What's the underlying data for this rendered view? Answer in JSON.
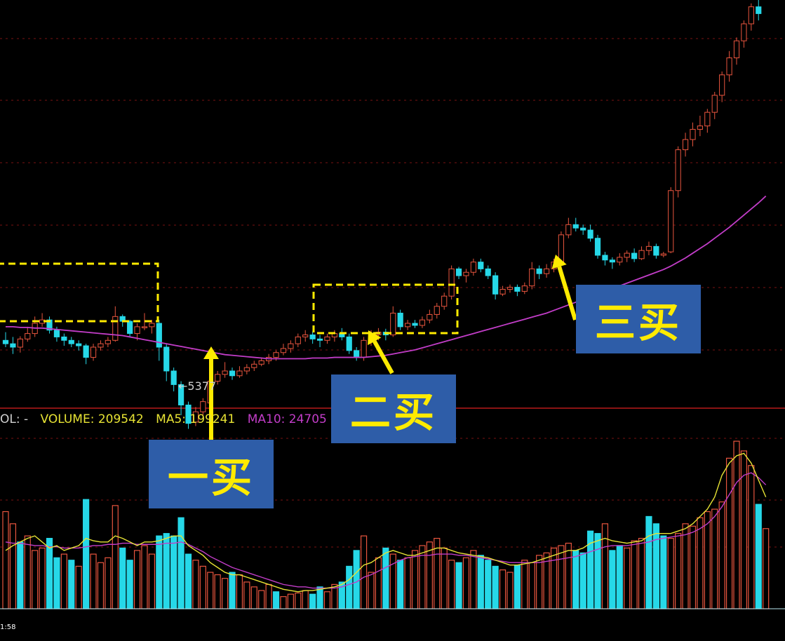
{
  "chart_data": {
    "type": "candlestick",
    "price": {
      "candles": [
        [
          9.8,
          9.75,
          9.92,
          9.7
        ],
        [
          9.75,
          9.7,
          9.85,
          9.6
        ],
        [
          9.7,
          9.82,
          9.86,
          9.62
        ],
        [
          9.82,
          9.9,
          10.0,
          9.78
        ],
        [
          9.9,
          10.05,
          10.15,
          9.85
        ],
        [
          10.05,
          10.1,
          10.2,
          10.0
        ],
        [
          10.1,
          9.95,
          10.15,
          9.9
        ],
        [
          9.95,
          9.85,
          10.0,
          9.78
        ],
        [
          9.85,
          9.8,
          9.9,
          9.72
        ],
        [
          9.8,
          9.75,
          9.85,
          9.7
        ],
        [
          9.75,
          9.72,
          9.8,
          9.65
        ],
        [
          9.72,
          9.55,
          9.75,
          9.45
        ],
        [
          9.55,
          9.7,
          9.75,
          9.5
        ],
        [
          9.7,
          9.75,
          9.8,
          9.65
        ],
        [
          9.75,
          9.8,
          9.85,
          9.7
        ],
        [
          9.8,
          10.15,
          10.3,
          9.78
        ],
        [
          10.15,
          10.08,
          10.18,
          10.0
        ],
        [
          10.08,
          9.9,
          10.1,
          9.85
        ],
        [
          9.9,
          10.0,
          10.05,
          9.8
        ],
        [
          10.0,
          10.0,
          10.2,
          9.95
        ],
        [
          10.0,
          10.05,
          10.1,
          9.9
        ],
        [
          10.05,
          9.7,
          10.1,
          9.5
        ],
        [
          9.7,
          9.35,
          9.75,
          9.2
        ],
        [
          9.35,
          9.15,
          9.4,
          9.05
        ],
        [
          9.15,
          8.85,
          9.2,
          8.7
        ],
        [
          8.85,
          8.58,
          8.9,
          8.5
        ],
        [
          8.6,
          8.75,
          8.82,
          8.54
        ],
        [
          8.75,
          8.9,
          8.95,
          8.7
        ],
        [
          8.88,
          9.2,
          9.25,
          8.85
        ],
        [
          9.2,
          9.3,
          9.35,
          9.15
        ],
        [
          9.3,
          9.35,
          9.48,
          9.25
        ],
        [
          9.35,
          9.28,
          9.4,
          9.22
        ],
        [
          9.28,
          9.35,
          9.42,
          9.25
        ],
        [
          9.35,
          9.4,
          9.45,
          9.3
        ],
        [
          9.4,
          9.45,
          9.5,
          9.35
        ],
        [
          9.45,
          9.5,
          9.55,
          9.42
        ],
        [
          9.5,
          9.55,
          9.6,
          9.45
        ],
        [
          9.55,
          9.62,
          9.65,
          9.5
        ],
        [
          9.62,
          9.68,
          9.75,
          9.58
        ],
        [
          9.68,
          9.75,
          9.8,
          9.62
        ],
        [
          9.75,
          9.85,
          9.9,
          9.7
        ],
        [
          9.85,
          9.88,
          9.95,
          9.78
        ],
        [
          9.88,
          9.82,
          9.93,
          9.75
        ],
        [
          9.82,
          9.8,
          9.88,
          9.7
        ],
        [
          9.8,
          9.85,
          9.9,
          9.75
        ],
        [
          9.85,
          9.9,
          9.95,
          9.78
        ],
        [
          9.9,
          9.85,
          9.98,
          9.8
        ],
        [
          9.85,
          9.65,
          9.9,
          9.6
        ],
        [
          9.65,
          9.55,
          9.7,
          9.5
        ],
        [
          9.55,
          9.8,
          9.85,
          9.5
        ],
        [
          9.8,
          9.88,
          9.95,
          9.72
        ],
        [
          9.88,
          9.92,
          9.98,
          9.8
        ],
        [
          9.92,
          9.88,
          9.97,
          9.8
        ],
        [
          9.88,
          10.2,
          10.3,
          9.85
        ],
        [
          10.2,
          10.0,
          10.25,
          9.95
        ],
        [
          10.0,
          10.05,
          10.1,
          9.95
        ],
        [
          10.05,
          10.02,
          10.1,
          9.98
        ],
        [
          10.02,
          10.1,
          10.15,
          9.98
        ],
        [
          10.1,
          10.18,
          10.25,
          10.05
        ],
        [
          10.18,
          10.3,
          10.35,
          10.12
        ],
        [
          10.3,
          10.45,
          10.5,
          10.25
        ],
        [
          10.45,
          10.85,
          10.9,
          10.4
        ],
        [
          10.85,
          10.75,
          10.88,
          10.7
        ],
        [
          10.75,
          10.8,
          10.85,
          10.65
        ],
        [
          10.8,
          10.95,
          11.0,
          10.75
        ],
        [
          10.95,
          10.85,
          11.0,
          10.8
        ],
        [
          10.85,
          10.75,
          10.9,
          10.7
        ],
        [
          10.75,
          10.48,
          10.8,
          10.4
        ],
        [
          10.48,
          10.55,
          10.6,
          10.45
        ],
        [
          10.55,
          10.58,
          10.62,
          10.5
        ],
        [
          10.58,
          10.52,
          10.62,
          10.45
        ],
        [
          10.52,
          10.6,
          10.65,
          10.48
        ],
        [
          10.6,
          10.85,
          10.95,
          10.55
        ],
        [
          10.85,
          10.78,
          10.9,
          10.7
        ],
        [
          10.78,
          10.85,
          10.92,
          10.72
        ],
        [
          10.85,
          10.95,
          11.0,
          10.8
        ],
        [
          10.95,
          11.35,
          11.4,
          10.9
        ],
        [
          11.35,
          11.5,
          11.6,
          11.3
        ],
        [
          11.5,
          11.45,
          11.6,
          11.4
        ],
        [
          11.45,
          11.42,
          11.5,
          11.35
        ],
        [
          11.42,
          11.3,
          11.5,
          11.25
        ],
        [
          11.3,
          11.05,
          11.35,
          11.0
        ],
        [
          11.05,
          10.98,
          11.1,
          10.9
        ],
        [
          10.98,
          10.95,
          11.02,
          10.85
        ],
        [
          10.95,
          11.02,
          11.08,
          10.9
        ],
        [
          11.02,
          11.08,
          11.12,
          10.95
        ],
        [
          11.08,
          11.0,
          11.15,
          10.95
        ],
        [
          11.0,
          11.12,
          11.18,
          10.98
        ],
        [
          11.12,
          11.18,
          11.25,
          11.05
        ],
        [
          11.18,
          11.05,
          11.22,
          11.0
        ],
        [
          11.05,
          11.07,
          11.1,
          11.02
        ],
        [
          11.1,
          12.0,
          12.05,
          11.08
        ],
        [
          12.0,
          12.6,
          12.65,
          11.9
        ],
        [
          12.6,
          12.75,
          12.85,
          12.5
        ],
        [
          12.75,
          12.9,
          13.0,
          12.65
        ],
        [
          12.9,
          12.95,
          13.1,
          12.8
        ],
        [
          12.95,
          13.15,
          13.2,
          12.85
        ],
        [
          13.15,
          13.4,
          13.45,
          13.05
        ],
        [
          13.4,
          13.7,
          13.75,
          13.3
        ],
        [
          13.7,
          13.95,
          14.05,
          13.6
        ],
        [
          13.95,
          14.2,
          14.25,
          13.85
        ],
        [
          14.2,
          14.45,
          14.5,
          14.1
        ],
        [
          14.45,
          14.7,
          14.75,
          14.35
        ],
        [
          14.7,
          14.6,
          14.85,
          14.5
        ]
      ],
      "ma": [
        10.0,
        10.0,
        9.99,
        9.99,
        9.98,
        9.98,
        9.97,
        9.96,
        9.95,
        9.94,
        9.93,
        9.92,
        9.91,
        9.9,
        9.89,
        9.88,
        9.87,
        9.85,
        9.83,
        9.81,
        9.79,
        9.77,
        9.75,
        9.73,
        9.71,
        9.69,
        9.67,
        9.65,
        9.63,
        9.61,
        9.59,
        9.58,
        9.57,
        9.56,
        9.55,
        9.54,
        9.53,
        9.53,
        9.53,
        9.53,
        9.53,
        9.53,
        9.54,
        9.54,
        9.54,
        9.55,
        9.55,
        9.55,
        9.55,
        9.55,
        9.56,
        9.57,
        9.58,
        9.6,
        9.62,
        9.64,
        9.66,
        9.69,
        9.72,
        9.75,
        9.78,
        9.81,
        9.84,
        9.87,
        9.9,
        9.93,
        9.96,
        9.99,
        10.02,
        10.05,
        10.08,
        10.11,
        10.14,
        10.17,
        10.2,
        10.24,
        10.28,
        10.32,
        10.36,
        10.4,
        10.44,
        10.48,
        10.52,
        10.56,
        10.6,
        10.64,
        10.68,
        10.72,
        10.76,
        10.8,
        10.84,
        10.89,
        10.95,
        11.01,
        11.08,
        11.15,
        11.22,
        11.3,
        11.38,
        11.46,
        11.55,
        11.64,
        11.73,
        11.82,
        11.92
      ],
      "y_range": [
        8.0,
        14.8
      ],
      "low_marker": "←5377"
    },
    "volume": {
      "header": {
        "label": "OL: -",
        "volume_text": "VOLUME: 209542",
        "ma5_text": "MA5: 199241",
        "ma10_text": "MA10: 24705"
      },
      "bars": [
        80,
        70,
        55,
        60,
        48,
        50,
        58,
        42,
        45,
        40,
        35,
        90,
        45,
        38,
        42,
        85,
        50,
        40,
        48,
        52,
        45,
        60,
        62,
        60,
        75,
        45,
        40,
        35,
        30,
        28,
        25,
        30,
        28,
        22,
        18,
        15,
        20,
        14,
        10,
        12,
        13,
        15,
        12,
        18,
        14,
        20,
        22,
        35,
        48,
        60,
        30,
        42,
        50,
        45,
        40,
        42,
        48,
        52,
        55,
        58,
        50,
        40,
        38,
        42,
        48,
        44,
        40,
        35,
        32,
        30,
        36,
        40,
        38,
        44,
        46,
        50,
        52,
        54,
        48,
        46,
        64,
        62,
        70,
        48,
        52,
        50,
        56,
        58,
        76,
        70,
        60,
        58,
        62,
        70,
        68,
        75,
        80,
        82,
        88,
        124,
        138,
        130,
        118,
        86,
        66
      ],
      "bar_up": [
        true,
        true,
        false,
        true,
        true,
        true,
        false,
        false,
        true,
        false,
        true,
        false,
        true,
        true,
        true,
        true,
        false,
        false,
        true,
        true,
        true,
        false,
        false,
        false,
        false,
        false,
        true,
        true,
        true,
        true,
        true,
        false,
        true,
        true,
        true,
        true,
        true,
        false,
        true,
        true,
        true,
        true,
        false,
        false,
        true,
        true,
        false,
        false,
        false,
        true,
        true,
        true,
        false,
        true,
        false,
        true,
        true,
        true,
        true,
        true,
        true,
        true,
        false,
        true,
        true,
        false,
        false,
        false,
        true,
        true,
        false,
        true,
        true,
        true,
        true,
        true,
        true,
        true,
        false,
        false,
        false,
        false,
        true,
        false,
        false,
        true,
        true,
        true,
        false,
        false,
        false,
        true,
        true,
        true,
        true,
        true,
        true,
        true,
        true,
        true,
        true,
        true,
        true,
        false,
        true
      ],
      "ma5": [
        48,
        52,
        55,
        58,
        60,
        55,
        50,
        52,
        48,
        50,
        52,
        58,
        56,
        55,
        55,
        60,
        58,
        55,
        52,
        55,
        55,
        56,
        58,
        60,
        60,
        52,
        48,
        44,
        38,
        34,
        30,
        28,
        28,
        26,
        24,
        22,
        20,
        18,
        16,
        15,
        14,
        15,
        15,
        16,
        17,
        18,
        20,
        24,
        30,
        36,
        38,
        42,
        46,
        48,
        46,
        44,
        44,
        46,
        48,
        50,
        50,
        48,
        46,
        45,
        44,
        43,
        42,
        40,
        38,
        36,
        36,
        37,
        38,
        40,
        42,
        44,
        46,
        48,
        48,
        50,
        54,
        56,
        58,
        56,
        55,
        54,
        55,
        56,
        60,
        62,
        62,
        62,
        64,
        66,
        70,
        76,
        82,
        92,
        110,
        120,
        126,
        128,
        120,
        106,
        92
      ],
      "ma10": [
        55,
        54,
        54,
        53,
        52,
        52,
        51,
        51,
        50,
        50,
        50,
        51,
        52,
        52,
        53,
        53,
        54,
        54,
        53,
        53,
        53,
        53,
        54,
        54,
        55,
        53,
        50,
        47,
        43,
        40,
        37,
        34,
        32,
        30,
        28,
        26,
        24,
        22,
        20,
        19,
        18,
        18,
        17,
        17,
        17,
        17,
        18,
        20,
        22,
        26,
        28,
        31,
        34,
        37,
        40,
        42,
        43,
        44,
        44,
        45,
        45,
        45,
        44,
        44,
        43,
        42,
        41,
        40,
        39,
        38,
        38,
        38,
        38,
        38,
        39,
        40,
        41,
        42,
        43,
        45,
        47,
        49,
        51,
        52,
        52,
        52,
        53,
        54,
        55,
        57,
        58,
        59,
        60,
        61,
        63,
        66,
        70,
        76,
        84,
        94,
        104,
        110,
        112,
        108,
        102
      ],
      "y_max": 145
    },
    "annotations": [
      {
        "label": "一买"
      },
      {
        "label": "二买"
      },
      {
        "label": "三买"
      }
    ],
    "time_label": "1:58"
  },
  "colors": {
    "background": "#000000",
    "up": "#e8553e",
    "down": "#26d8e8",
    "ma_line": "#c23dc8",
    "vol_ma5": "#e7e334",
    "vol_ma10": "#c23dc8",
    "separator": "#8a1414",
    "grid": "#7a1212",
    "arrow": "#ffeb00",
    "box": "#ffeb00",
    "label_bg": "#2e5da8",
    "label_text": "#ffeb00",
    "header_label": "#d0d0d0",
    "header_volume": "#e7e334",
    "header_ma5": "#e7e334",
    "header_ma10": "#c23dc8",
    "baseline": "#b8e8f0"
  }
}
